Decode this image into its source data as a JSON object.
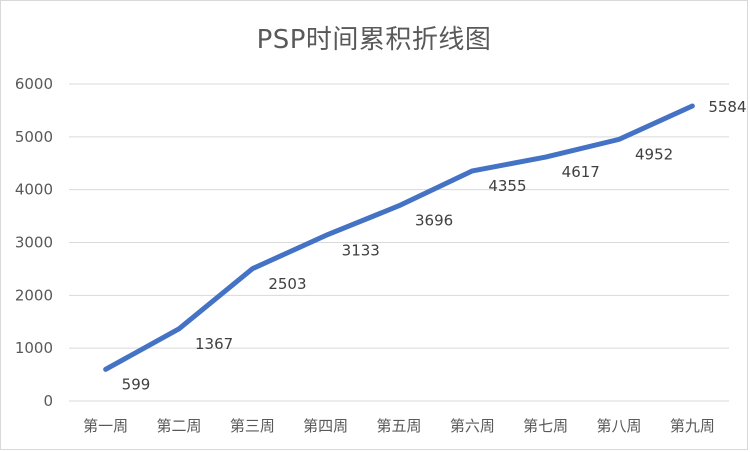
{
  "chart_data": {
    "type": "line",
    "title": "PSP时间累积折线图",
    "categories": [
      "第一周",
      "第二周",
      "第三周",
      "第四周",
      "第五周",
      "第六周",
      "第七周",
      "第八周",
      "第九周"
    ],
    "series": [
      {
        "values": [
          599,
          1367,
          2503,
          3133,
          3696,
          4355,
          4617,
          4952,
          5584
        ],
        "color": "#4472C4"
      }
    ],
    "data_labels": [
      "599",
      "1367",
      "2503",
      "3133",
      "3696",
      "4355",
      "4617",
      "4952",
      "5584"
    ],
    "ylim": [
      0,
      6000
    ],
    "yticks": [
      "0",
      "1000",
      "2000",
      "3000",
      "4000",
      "5000",
      "6000"
    ],
    "xlabel": "",
    "ylabel": "",
    "grid": true,
    "legend": "none"
  }
}
